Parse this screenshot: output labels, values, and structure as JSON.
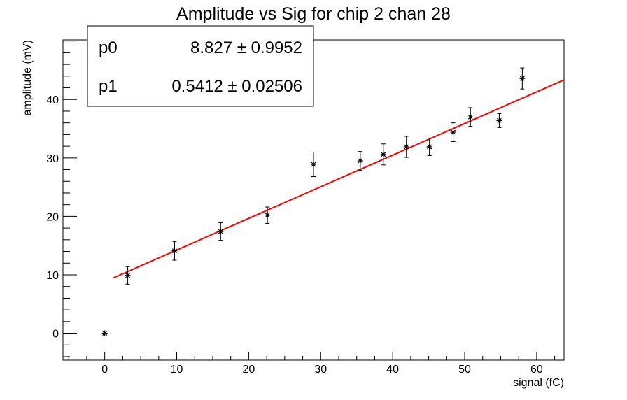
{
  "chart_data": {
    "type": "scatter",
    "title": "Amplitude vs Sig for chip 2 chan 28",
    "xlabel": "signal (fC)",
    "ylabel": "amplitude (mV)",
    "xlim": [
      -5.8,
      63.8
    ],
    "ylim": [
      -4.6,
      50.2
    ],
    "x_ticks": [
      0,
      10,
      20,
      30,
      40,
      50,
      60
    ],
    "y_ticks": [
      0,
      10,
      20,
      30,
      40
    ],
    "grid": false,
    "marker_color": "#000000",
    "fit_color": "#ff0000",
    "points": [
      {
        "x": 0.0,
        "y": 0.0,
        "err": 0.0
      },
      {
        "x": 3.2,
        "y": 9.9,
        "err": 1.5
      },
      {
        "x": 9.7,
        "y": 14.1,
        "err": 1.6
      },
      {
        "x": 16.1,
        "y": 17.4,
        "err": 1.5
      },
      {
        "x": 22.6,
        "y": 20.2,
        "err": 1.4
      },
      {
        "x": 29.0,
        "y": 28.9,
        "err": 2.1
      },
      {
        "x": 35.5,
        "y": 29.5,
        "err": 1.6
      },
      {
        "x": 38.7,
        "y": 30.6,
        "err": 1.8
      },
      {
        "x": 41.9,
        "y": 31.9,
        "err": 1.8
      },
      {
        "x": 45.1,
        "y": 31.9,
        "err": 1.5
      },
      {
        "x": 48.4,
        "y": 34.4,
        "err": 1.6
      },
      {
        "x": 50.8,
        "y": 37.0,
        "err": 1.6
      },
      {
        "x": 54.8,
        "y": 36.4,
        "err": 1.2
      },
      {
        "x": 58.0,
        "y": 43.6,
        "err": 1.8
      }
    ],
    "fit": {
      "p0": 8.827,
      "p1": 0.5412,
      "x_range": [
        1.2,
        63.8
      ]
    },
    "stats": [
      {
        "name": "p0",
        "value": "8.827 ± 0.9952"
      },
      {
        "name": "p1",
        "value": "0.5412 ± 0.02506"
      }
    ]
  }
}
